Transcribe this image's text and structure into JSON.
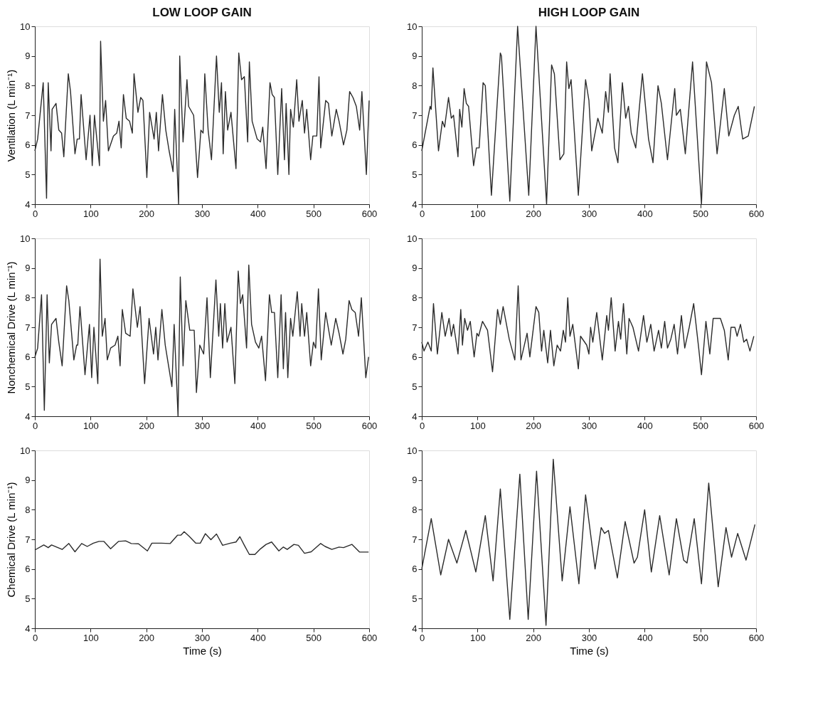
{
  "chart_data": [
    {
      "type": "line",
      "title": "LOW LOOP GAIN",
      "ylabel": "Ventilation (L min⁻¹)",
      "xlim": [
        0,
        600
      ],
      "xticks": [
        0,
        100,
        200,
        300,
        400,
        500,
        600
      ],
      "ylim": [
        4,
        10
      ],
      "yticks": [
        4,
        5,
        6,
        7,
        8,
        9,
        10
      ],
      "x": [
        0,
        5,
        15,
        21,
        24,
        29,
        31,
        38,
        43,
        48,
        52,
        60,
        64,
        72,
        76,
        80,
        83,
        92,
        99,
        103,
        107,
        116,
        118,
        123,
        127,
        132,
        141,
        147,
        151,
        155,
        159,
        164,
        170,
        175,
        178,
        185,
        190,
        194,
        201,
        206,
        214,
        218,
        222,
        229,
        235,
        241,
        248,
        251,
        258,
        260,
        266,
        273,
        276,
        285,
        292,
        298,
        302,
        305,
        311,
        317,
        326,
        331,
        335,
        338,
        342,
        346,
        352,
        361,
        366,
        371,
        376,
        382,
        385,
        390,
        399,
        405,
        409,
        415,
        422,
        426,
        430,
        436,
        443,
        448,
        451,
        456,
        459,
        464,
        470,
        474,
        480,
        484,
        488,
        495,
        499,
        506,
        510,
        513,
        522,
        527,
        533,
        541,
        546,
        554,
        560,
        565,
        571,
        577,
        583,
        587,
        595,
        600
      ],
      "series": [
        {
          "color": "#2b2b2b",
          "values": [
            5.8,
            6.2,
            8.1,
            4.2,
            8.1,
            5.8,
            7.2,
            7.4,
            6.5,
            6.4,
            5.6,
            8.4,
            7.8,
            5.7,
            6.2,
            6.2,
            7.7,
            5.5,
            7.0,
            5.3,
            7.0,
            5.3,
            9.5,
            6.8,
            7.5,
            5.8,
            6.3,
            6.4,
            6.8,
            5.9,
            7.7,
            6.9,
            6.8,
            6.4,
            8.4,
            7.1,
            7.6,
            7.5,
            4.9,
            7.1,
            6.2,
            7.1,
            5.8,
            7.7,
            6.5,
            5.8,
            5.1,
            7.2,
            4.0,
            9.0,
            6.1,
            8.2,
            7.3,
            7.0,
            4.9,
            6.5,
            6.4,
            8.4,
            6.5,
            5.5,
            9.0,
            7.1,
            8.1,
            5.7,
            7.8,
            6.5,
            7.1,
            5.2,
            9.1,
            8.2,
            8.3,
            6.1,
            8.8,
            6.8,
            6.2,
            6.1,
            6.6,
            5.2,
            8.1,
            7.7,
            7.6,
            5.0,
            7.9,
            5.5,
            7.4,
            5.0,
            7.2,
            6.6,
            8.2,
            6.8,
            7.5,
            6.4,
            7.2,
            5.5,
            6.3,
            6.3,
            8.3,
            5.9,
            7.5,
            7.4,
            6.3,
            7.2,
            6.8,
            6.0,
            6.5,
            7.8,
            7.6,
            7.3,
            6.5,
            7.8,
            5.0,
            7.5
          ]
        }
      ]
    },
    {
      "type": "line",
      "title": "HIGH LOOP GAIN",
      "xlim": [
        0,
        600
      ],
      "xticks": [
        0,
        100,
        200,
        300,
        400,
        500,
        600
      ],
      "ylim": [
        4,
        10
      ],
      "yticks": [
        4,
        5,
        6,
        7,
        8,
        9,
        10
      ],
      "x": [
        0,
        11,
        15,
        17,
        20,
        30,
        37,
        41,
        48,
        53,
        57,
        65,
        68,
        72,
        76,
        80,
        84,
        93,
        98,
        103,
        110,
        114,
        125,
        141,
        143,
        158,
        172,
        192,
        205,
        224,
        233,
        238,
        248,
        255,
        260,
        264,
        268,
        281,
        294,
        300,
        305,
        316,
        324,
        330,
        335,
        338,
        346,
        352,
        360,
        366,
        371,
        376,
        384,
        396,
        407,
        415,
        424,
        430,
        441,
        454,
        457,
        464,
        473,
        486,
        502,
        511,
        520,
        530,
        543,
        551,
        561,
        568,
        576,
        586,
        597
      ],
      "series": [
        {
          "color": "#2b2b2b",
          "values": [
            5.8,
            6.9,
            7.3,
            7.2,
            8.6,
            5.8,
            6.8,
            6.6,
            7.6,
            6.9,
            7.0,
            5.6,
            7.2,
            6.6,
            7.9,
            7.4,
            7.3,
            5.3,
            5.9,
            5.9,
            8.1,
            8.0,
            4.3,
            9.1,
            9.0,
            4.1,
            10.0,
            4.3,
            10.0,
            4.0,
            8.7,
            8.4,
            5.5,
            5.7,
            8.8,
            7.9,
            8.2,
            4.3,
            8.2,
            7.5,
            5.8,
            6.9,
            6.4,
            7.8,
            7.1,
            8.4,
            5.9,
            5.4,
            8.1,
            6.9,
            7.3,
            6.4,
            5.9,
            8.4,
            6.2,
            5.4,
            8.0,
            7.4,
            5.5,
            7.9,
            7.0,
            7.2,
            5.7,
            8.8,
            4.0,
            8.8,
            8.1,
            5.7,
            7.9,
            6.3,
            7.0,
            7.3,
            6.2,
            6.3,
            7.3
          ]
        }
      ]
    },
    {
      "type": "line",
      "ylabel": "Nonchemical Drive (L min⁻¹)",
      "xlim": [
        0,
        600
      ],
      "xticks": [
        0,
        100,
        200,
        300,
        400,
        500,
        600
      ],
      "ylim": [
        4,
        10
      ],
      "yticks": [
        4,
        5,
        6,
        7,
        8,
        9,
        10
      ],
      "x": [
        0,
        5,
        12,
        17,
        22,
        26,
        30,
        38,
        43,
        49,
        57,
        61,
        70,
        75,
        77,
        81,
        90,
        98,
        102,
        106,
        113,
        117,
        121,
        126,
        130,
        136,
        144,
        149,
        153,
        157,
        163,
        171,
        176,
        184,
        189,
        197,
        205,
        213,
        217,
        221,
        228,
        234,
        240,
        246,
        250,
        257,
        261,
        266,
        271,
        278,
        286,
        290,
        296,
        303,
        309,
        315,
        325,
        330,
        333,
        337,
        341,
        345,
        352,
        359,
        365,
        369,
        373,
        380,
        384,
        389,
        396,
        402,
        407,
        414,
        421,
        425,
        430,
        436,
        442,
        446,
        450,
        454,
        459,
        463,
        471,
        476,
        479,
        484,
        488,
        495,
        500,
        504,
        509,
        514,
        522,
        532,
        540,
        546,
        553,
        558,
        564,
        569,
        575,
        581,
        586,
        594,
        599
      ],
      "series": [
        {
          "color": "#2b2b2b",
          "values": [
            6.0,
            6.3,
            8.1,
            4.2,
            8.1,
            5.8,
            7.1,
            7.3,
            6.5,
            5.7,
            8.4,
            7.9,
            5.9,
            6.4,
            6.4,
            7.7,
            5.4,
            7.1,
            5.3,
            7.0,
            5.1,
            9.3,
            6.7,
            7.3,
            5.9,
            6.3,
            6.4,
            6.7,
            5.7,
            7.6,
            6.8,
            6.7,
            8.3,
            7.0,
            7.7,
            5.1,
            7.3,
            6.1,
            7.0,
            5.9,
            7.6,
            6.4,
            5.7,
            5.0,
            7.1,
            4.0,
            8.7,
            5.7,
            7.9,
            6.9,
            6.9,
            4.8,
            6.4,
            6.1,
            8.0,
            5.3,
            8.6,
            6.7,
            7.8,
            6.3,
            7.8,
            6.5,
            7.0,
            5.1,
            8.9,
            7.8,
            8.1,
            6.3,
            9.1,
            7.1,
            6.5,
            6.3,
            6.7,
            5.2,
            8.1,
            7.5,
            7.5,
            5.3,
            8.1,
            5.6,
            7.5,
            5.3,
            7.3,
            6.7,
            8.2,
            6.7,
            7.8,
            6.7,
            7.5,
            5.7,
            6.5,
            6.3,
            8.3,
            5.9,
            7.5,
            6.4,
            7.3,
            6.8,
            6.1,
            6.6,
            7.9,
            7.6,
            7.5,
            6.7,
            8.0,
            5.3,
            6.0
          ]
        }
      ]
    },
    {
      "type": "line",
      "xlim": [
        0,
        600
      ],
      "xticks": [
        0,
        100,
        200,
        300,
        400,
        500,
        600
      ],
      "ylim": [
        4,
        10
      ],
      "yticks": [
        4,
        5,
        6,
        7,
        8,
        9,
        10
      ],
      "x": [
        0,
        4,
        11,
        17,
        21,
        28,
        36,
        42,
        49,
        53,
        57,
        65,
        70,
        73,
        77,
        82,
        87,
        94,
        99,
        102,
        109,
        118,
        127,
        136,
        141,
        146,
        157,
        167,
        173,
        178,
        189,
        194,
        205,
        210,
        215,
        219,
        226,
        231,
        237,
        243,
        249,
        254,
        258,
        262,
        266,
        271,
        281,
        285,
        296,
        300,
        303,
        307,
        314,
        324,
        332,
        335,
        340,
        347,
        353,
        357,
        362,
        368,
        372,
        379,
        389,
        398,
        404,
        411,
        417,
        425,
        430,
        436,
        441,
        447,
        453,
        459,
        466,
        472,
        480,
        488,
        497,
        502,
        510,
        517,
        523,
        532,
        536,
        543,
        550,
        555,
        562,
        566,
        572,
        578,
        583,
        589,
        596
      ],
      "series": [
        {
          "color": "#2b2b2b",
          "values": [
            6.5,
            6.2,
            6.5,
            6.2,
            7.8,
            6.1,
            7.5,
            6.7,
            7.3,
            6.7,
            7.1,
            6.1,
            7.6,
            6.4,
            7.3,
            6.9,
            7.2,
            6.0,
            6.8,
            6.7,
            7.2,
            6.9,
            5.5,
            7.6,
            7.1,
            7.7,
            6.6,
            5.9,
            8.4,
            5.9,
            6.8,
            6.0,
            7.7,
            7.5,
            6.2,
            6.9,
            5.8,
            6.9,
            5.7,
            6.4,
            6.2,
            6.9,
            6.5,
            8.0,
            6.7,
            7.1,
            5.6,
            6.7,
            6.4,
            6.1,
            7.0,
            6.5,
            7.5,
            5.9,
            7.4,
            6.9,
            8.0,
            6.2,
            7.2,
            6.6,
            7.8,
            6.1,
            7.3,
            7.0,
            6.2,
            7.4,
            6.5,
            7.1,
            6.2,
            6.9,
            6.3,
            7.2,
            6.3,
            6.6,
            7.1,
            6.1,
            7.4,
            6.3,
            7.0,
            7.8,
            6.3,
            5.4,
            7.2,
            6.1,
            7.3,
            7.3,
            7.3,
            6.9,
            5.9,
            7.0,
            7.0,
            6.7,
            7.1,
            6.5,
            6.6,
            6.2,
            6.7
          ]
        }
      ]
    },
    {
      "type": "line",
      "ylabel": "Chemical Drive (L min⁻¹)",
      "xlabel": "Time (s)",
      "xlim": [
        0,
        600
      ],
      "xticks": [
        0,
        100,
        200,
        300,
        400,
        500,
        600
      ],
      "ylim": [
        4,
        10
      ],
      "yticks": [
        4,
        5,
        6,
        7,
        8,
        9,
        10
      ],
      "x": [
        0,
        16,
        24,
        30,
        49,
        61,
        72,
        84,
        94,
        105,
        115,
        124,
        136,
        150,
        163,
        173,
        186,
        202,
        210,
        227,
        243,
        256,
        262,
        268,
        277,
        289,
        297,
        306,
        316,
        326,
        337,
        351,
        361,
        368,
        376,
        385,
        395,
        405,
        415,
        425,
        438,
        446,
        453,
        465,
        473,
        484,
        496,
        513,
        521,
        533,
        546,
        554,
        569,
        583,
        599
      ],
      "series": [
        {
          "color": "#2b2b2b",
          "values": [
            6.64,
            6.81,
            6.72,
            6.81,
            6.66,
            6.86,
            6.58,
            6.86,
            6.76,
            6.87,
            6.93,
            6.93,
            6.68,
            6.93,
            6.95,
            6.86,
            6.85,
            6.61,
            6.87,
            6.87,
            6.86,
            7.14,
            7.14,
            7.26,
            7.1,
            6.87,
            6.87,
            7.19,
            6.99,
            7.18,
            6.8,
            6.87,
            6.91,
            7.09,
            6.8,
            6.49,
            6.49,
            6.68,
            6.83,
            6.91,
            6.61,
            6.74,
            6.66,
            6.83,
            6.8,
            6.53,
            6.58,
            6.86,
            6.76,
            6.66,
            6.74,
            6.72,
            6.83,
            6.57,
            6.57
          ]
        }
      ]
    },
    {
      "type": "line",
      "xlabel": "Time (s)",
      "xlim": [
        0,
        600
      ],
      "xticks": [
        0,
        100,
        200,
        300,
        400,
        500,
        600
      ],
      "ylim": [
        4,
        10
      ],
      "yticks": [
        4,
        5,
        6,
        7,
        8,
        9,
        10
      ],
      "x": [
        0,
        17,
        34,
        48,
        63,
        79,
        97,
        114,
        128,
        141,
        158,
        176,
        191,
        206,
        223,
        236,
        252,
        266,
        282,
        294,
        311,
        322,
        328,
        335,
        351,
        365,
        381,
        387,
        400,
        412,
        427,
        444,
        457,
        470,
        476,
        489,
        502,
        515,
        532,
        546,
        556,
        567,
        582,
        598
      ],
      "series": [
        {
          "color": "#2b2b2b",
          "values": [
            6.0,
            7.7,
            5.8,
            7.0,
            6.2,
            7.3,
            5.9,
            7.8,
            5.6,
            8.7,
            4.3,
            9.2,
            4.3,
            9.3,
            4.1,
            9.7,
            5.6,
            8.1,
            5.5,
            8.5,
            6.0,
            7.4,
            7.2,
            7.3,
            5.7,
            7.6,
            6.2,
            6.4,
            8.0,
            5.9,
            7.8,
            5.8,
            7.7,
            6.3,
            6.2,
            7.7,
            5.5,
            8.9,
            5.4,
            7.4,
            6.4,
            7.2,
            6.3,
            7.5
          ]
        }
      ]
    }
  ]
}
